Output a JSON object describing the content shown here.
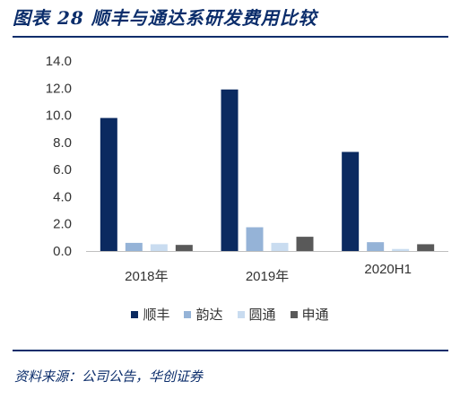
{
  "figure": {
    "title": "图表 28   顺丰与通达系研发费用比较",
    "source": "资料来源：公司公告，华创证券"
  },
  "chart_data": {
    "type": "bar",
    "categories": [
      "2018年",
      "2019年",
      "2020H1"
    ],
    "series": [
      {
        "name": "顺丰",
        "color": "#0b2a60",
        "values": [
          9.8,
          11.9,
          7.3
        ]
      },
      {
        "name": "韵达",
        "color": "#95b3d7",
        "values": [
          0.6,
          1.75,
          0.65
        ]
      },
      {
        "name": "圆通",
        "color": "#c9dcf0",
        "values": [
          0.5,
          0.6,
          0.15
        ]
      },
      {
        "name": "申通",
        "color": "#595959",
        "values": [
          0.45,
          1.05,
          0.5
        ]
      }
    ],
    "ylim": [
      0,
      14
    ],
    "yticks": [
      "0.0",
      "2.0",
      "4.0",
      "6.0",
      "8.0",
      "10.0",
      "12.0",
      "14.0"
    ],
    "legend_position": "bottom",
    "grid": false
  }
}
